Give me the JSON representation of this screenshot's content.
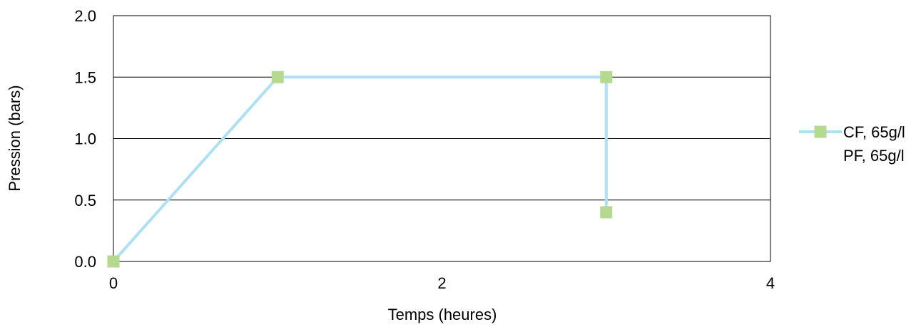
{
  "chart_data": {
    "type": "line",
    "xlabel": "Temps (heures)",
    "ylabel": "Pression (bars)",
    "xlim": [
      0,
      4
    ],
    "ylim": [
      0,
      2
    ],
    "xticks": [
      0,
      2,
      4
    ],
    "xtick_labels": [
      "0",
      "2",
      "4"
    ],
    "yticks": [
      0,
      0.5,
      1,
      1.5,
      2
    ],
    "ytick_labels": [
      "0.0",
      "0.5",
      "1.0",
      "1.5",
      "2.0"
    ],
    "grid": "horizontal",
    "legend_placement": "right",
    "series": [
      {
        "name": "CF, 65g/l",
        "x": [
          0,
          1,
          3,
          3
        ],
        "y": [
          0,
          1.5,
          1.5,
          0.4
        ],
        "line_color": "#aee0f5",
        "marker": "square",
        "marker_color": "#b5d98f"
      },
      {
        "name": "PF, 65g/l",
        "x": [],
        "y": []
      }
    ]
  }
}
